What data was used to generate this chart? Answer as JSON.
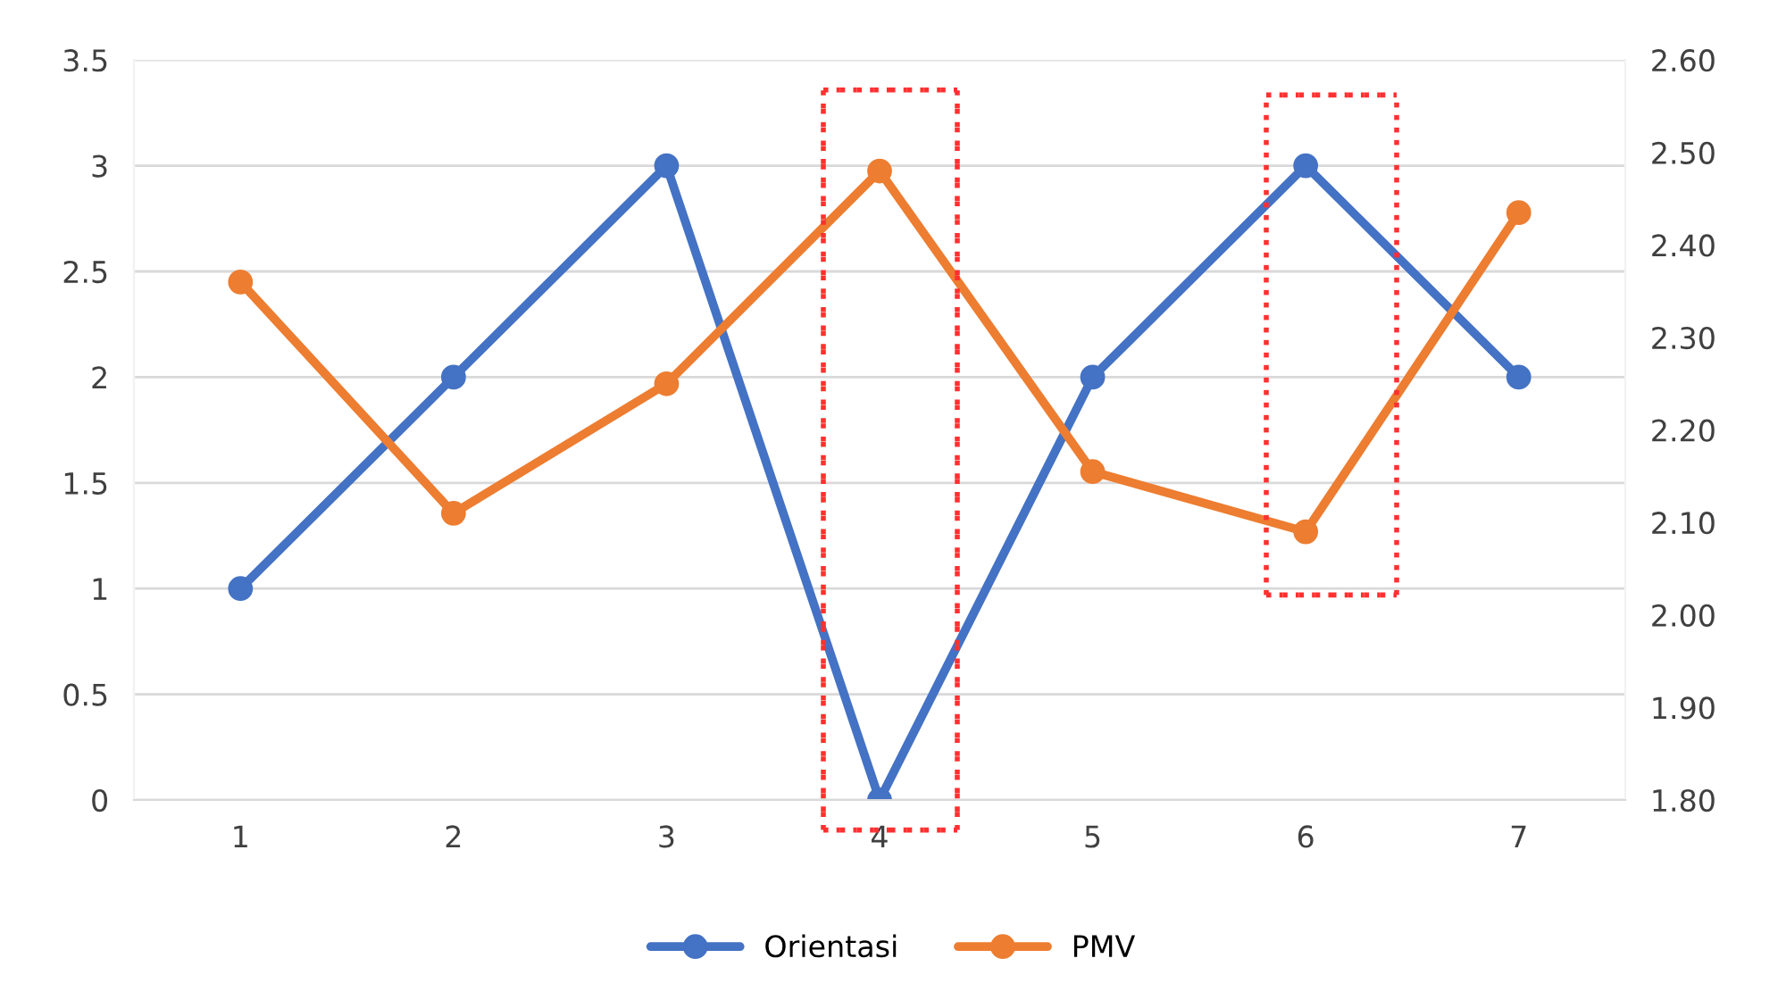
{
  "chart_data": {
    "type": "line",
    "x": [
      1,
      2,
      3,
      4,
      5,
      6,
      7
    ],
    "xlim": [
      0.5,
      7.5
    ],
    "xticks": [
      1,
      2,
      3,
      4,
      5,
      6,
      7
    ],
    "series": [
      {
        "name": "Orientasi",
        "color": "#4472c4",
        "values": [
          1,
          2,
          3,
          0,
          2,
          3,
          2
        ]
      },
      {
        "name": "PMV",
        "color": "#ed7d31",
        "axis": "y2",
        "values": [
          2.36,
          2.11,
          2.25,
          2.48,
          2.155,
          2.09,
          2.435
        ]
      }
    ],
    "ylim": [
      0,
      3.5
    ],
    "yticks": [
      0,
      0.5,
      1,
      1.5,
      2,
      2.5,
      3,
      3.5
    ],
    "y2lim": [
      1.8,
      2.6
    ],
    "y2ticks": [
      {
        "value": 1.8,
        "label": "1.80"
      },
      {
        "value": 1.9,
        "label": "1.90"
      },
      {
        "value": 2.0,
        "label": "2.00"
      },
      {
        "value": 2.1,
        "label": "2.10"
      },
      {
        "value": 2.2,
        "label": "2.20"
      },
      {
        "value": 2.3,
        "label": "2.30"
      },
      {
        "value": 2.4,
        "label": "2.40"
      },
      {
        "value": 2.5,
        "label": "2.50"
      },
      {
        "value": 2.6,
        "label": "2.60"
      }
    ],
    "grid": "y",
    "legend": "bottom",
    "marker": "circle",
    "line_style": "solid"
  }
}
